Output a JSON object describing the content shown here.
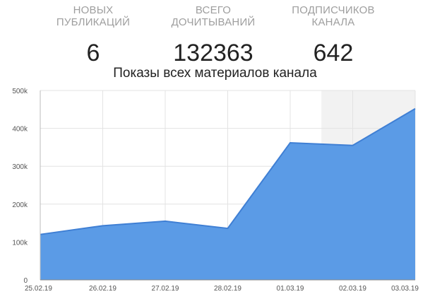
{
  "stats": [
    {
      "label_line1": "НОВЫХ",
      "label_line2": "ПУБЛИКАЦИЙ",
      "value": "6"
    },
    {
      "label_line1": "ВСЕГО",
      "label_line2": "ДОЧИТЫВАНИЙ",
      "value": "132363"
    },
    {
      "label_line1": "ПОДПИСЧИКОВ",
      "label_line2": "КАНАЛА",
      "value": "642"
    }
  ],
  "chart_data": {
    "type": "area",
    "title": "Показы всех материалов канала",
    "categories": [
      "25.02.19",
      "26.02.19",
      "27.02.19",
      "28.02.19",
      "01.03.19",
      "02.03.19",
      "03.03.19"
    ],
    "series": [
      {
        "values": [
          120000,
          143000,
          155000,
          136000,
          362000,
          355000,
          452000
        ]
      }
    ],
    "ylim": [
      0,
      500000
    ],
    "yticks": [
      "0",
      "100k",
      "200k",
      "300k",
      "400k",
      "500k"
    ],
    "grid": true,
    "highlight_range": [
      "02.03.19",
      "03.03.19"
    ],
    "colors": {
      "fill": "#5b9be6",
      "line": "#3f7fd4",
      "grid": "#e3e3e3",
      "highlight": "#f2f2f2"
    }
  }
}
